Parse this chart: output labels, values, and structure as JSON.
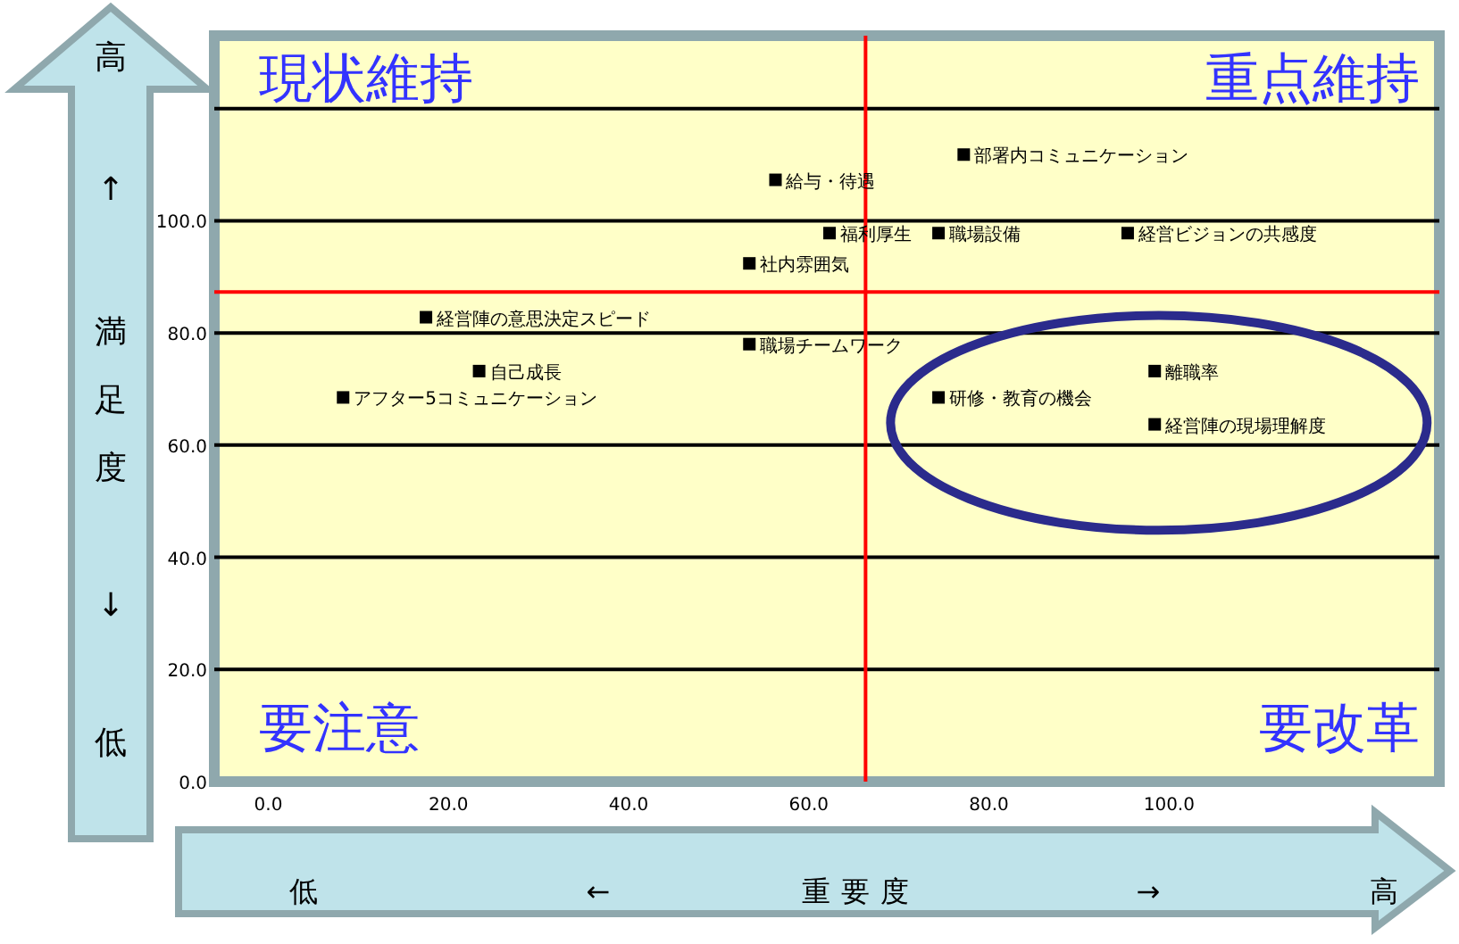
{
  "chart_data": {
    "type": "scatter",
    "xlabel": "重要度",
    "ylabel": "満足度",
    "xlim": [
      -6,
      130
    ],
    "ylim": [
      0,
      133
    ],
    "xticks": [
      {
        "value": 0,
        "label": "0.0"
      },
      {
        "value": 20,
        "label": "20.0"
      },
      {
        "value": 40,
        "label": "40.0"
      },
      {
        "value": 60,
        "label": "60.0"
      },
      {
        "value": 80,
        "label": "80.0"
      },
      {
        "value": 100,
        "label": "100.0"
      }
    ],
    "yticks": [
      {
        "value": 0,
        "label": "0.0"
      },
      {
        "value": 20,
        "label": "20.0"
      },
      {
        "value": 40,
        "label": "40.0"
      },
      {
        "value": 60,
        "label": "60.0"
      },
      {
        "value": 80,
        "label": "80.0"
      },
      {
        "value": 100,
        "label": "100.0"
      },
      {
        "value": 120,
        "label": null
      }
    ],
    "grid": "y",
    "marker": "square",
    "ref_lines": [
      {
        "axis": "x",
        "value": 66.3,
        "color": "#ff0000"
      },
      {
        "axis": "y",
        "value": 87.3,
        "color": "#ff0000"
      }
    ],
    "series": [
      {
        "name": "部署内コミュニケーション",
        "color": "#000000",
        "x": [
          77.2
        ],
        "values": [
          111.8
        ]
      },
      {
        "name": "給与・待遇",
        "color": "#000000",
        "x": [
          56.3
        ],
        "values": [
          107.3
        ]
      },
      {
        "name": "福利厚生",
        "color": "#000000",
        "x": [
          62.3
        ],
        "values": [
          97.8
        ]
      },
      {
        "name": "職場設備",
        "color": "#000000",
        "x": [
          74.4
        ],
        "values": [
          97.8
        ]
      },
      {
        "name": "経営ビジョンの共感度",
        "color": "#000000",
        "x": [
          95.4
        ],
        "values": [
          97.8
        ]
      },
      {
        "name": "社内雰囲気",
        "color": "#000000",
        "x": [
          53.4
        ],
        "values": [
          92.4
        ]
      },
      {
        "name": "経営陣の意思決定スピード",
        "color": "#000000",
        "x": [
          17.5
        ],
        "values": [
          82.8
        ]
      },
      {
        "name": "職場チームワーク",
        "color": "#000000",
        "x": [
          53.4
        ],
        "values": [
          78.0
        ]
      },
      {
        "name": "自己成長",
        "color": "#000000",
        "x": [
          23.4
        ],
        "values": [
          73.2
        ]
      },
      {
        "name": "アフター5コミュニケーション",
        "color": "#000000",
        "x": [
          8.3
        ],
        "values": [
          68.5
        ]
      },
      {
        "name": "研修・教育の機会",
        "color": "#000000",
        "x": [
          74.4
        ],
        "values": [
          68.5
        ]
      },
      {
        "name": "離職率",
        "color": "#000000",
        "x": [
          98.4
        ],
        "values": [
          73.2
        ]
      },
      {
        "name": "経営陣の現場理解度",
        "color": "#000000",
        "x": [
          98.4
        ],
        "values": [
          63.7
        ]
      }
    ],
    "annotations": [
      "高",
      "↑",
      "↓",
      "低",
      "低",
      "←",
      "→",
      "高",
      "現状維持",
      "重点維持",
      "要注意",
      "要改革"
    ]
  }
}
